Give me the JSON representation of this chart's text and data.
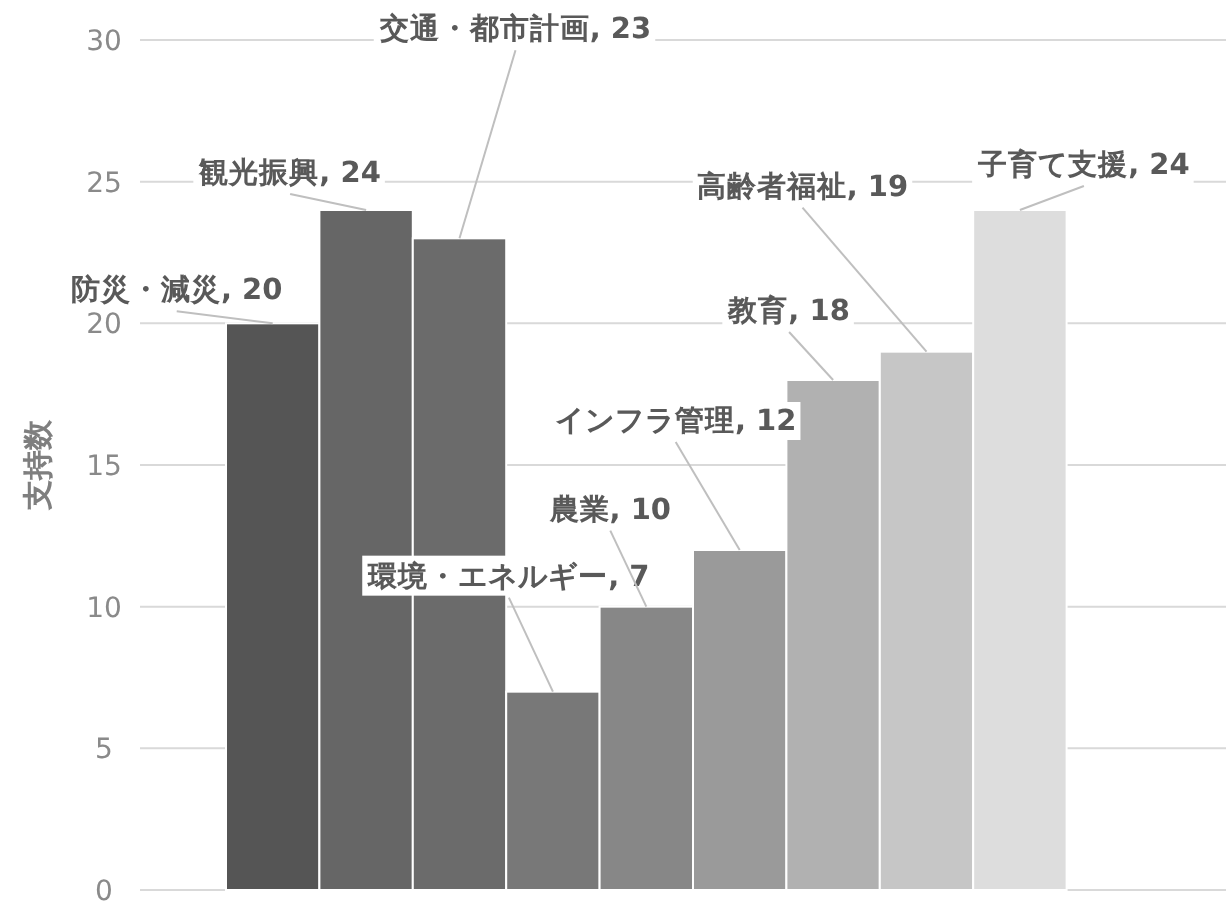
{
  "chart_data": {
    "type": "bar",
    "ylabel": "支持数",
    "categories": [
      null,
      null,
      null,
      null,
      null,
      null,
      null,
      null,
      null
    ],
    "values": [
      20,
      24,
      23,
      7,
      10,
      12,
      18,
      19,
      24
    ],
    "colors": [
      "#555555",
      "#666666",
      "#6b6b6b",
      "#787878",
      "#878787",
      "#9a9a9a",
      "#b1b1b1",
      "#c6c6c6",
      "#dddddd"
    ],
    "value_labels": [
      "防災・減災, 20",
      "観光振興, 24",
      "交通・都市計画, 23",
      "環境・エネルギー, 7",
      "農業, 10",
      "インフラ管理, 12",
      "教育, 18",
      "高齢者福祉, 19",
      "子育て支援, 24"
    ],
    "ylim": [
      0,
      30
    ],
    "yticks": [
      0,
      5,
      10,
      15,
      20,
      25,
      30
    ],
    "grid": "y",
    "tick_labels": "y"
  }
}
